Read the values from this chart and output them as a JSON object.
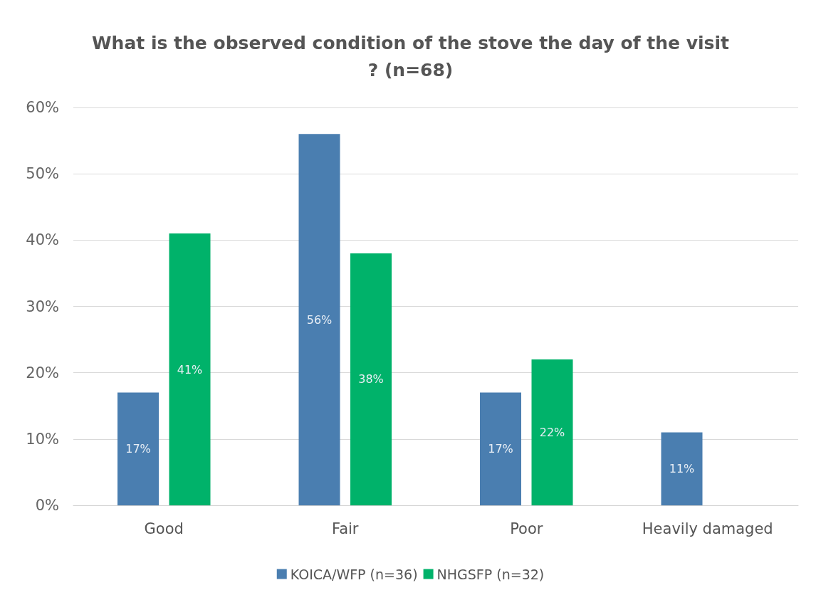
{
  "chart_data": {
    "type": "bar",
    "title": "What is the observed condition of the stove the day of the visit? (n=68)",
    "categories": [
      "Good",
      "Fair",
      "Poor",
      "Heavily damaged"
    ],
    "series": [
      {
        "name": "KOICA/WFP (n=36)",
        "color": "#4a7eb0",
        "values": [
          17,
          56,
          17,
          11
        ],
        "value_labels": [
          "17%",
          "56%",
          "17%",
          "11%"
        ]
      },
      {
        "name": "NHGSFP (n=32)",
        "color": "#00b26a",
        "values": [
          41,
          38,
          22,
          null
        ],
        "value_labels": [
          "41%",
          "38%",
          "22%",
          null
        ]
      }
    ],
    "ylim": [
      0,
      60
    ],
    "yticks": [
      {
        "value": 0,
        "label": "0%"
      },
      {
        "value": 10,
        "label": "10%"
      },
      {
        "value": 20,
        "label": "20%"
      },
      {
        "value": 30,
        "label": "30%"
      },
      {
        "value": 40,
        "label": "40%"
      },
      {
        "value": 50,
        "label": "50%"
      },
      {
        "value": 60,
        "label": "60%"
      }
    ],
    "grid": "y",
    "legend": "bottom"
  }
}
